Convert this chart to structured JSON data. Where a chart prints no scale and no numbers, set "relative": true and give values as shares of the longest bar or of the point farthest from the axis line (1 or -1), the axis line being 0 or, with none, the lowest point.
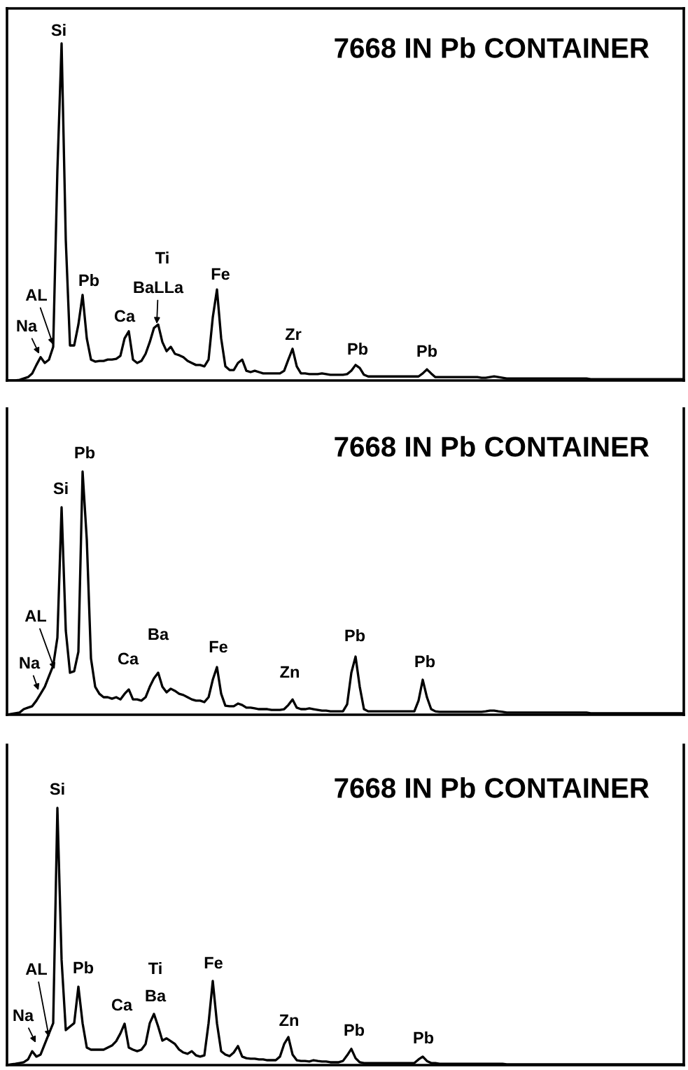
{
  "chart_data": [
    {
      "type": "line",
      "title": "7668 IN Pb CONTAINER",
      "relative": true,
      "categories": [
        null,
        null,
        null,
        null,
        null,
        null,
        null,
        null,
        null,
        null,
        null,
        null,
        null,
        null,
        null,
        null,
        null,
        null,
        null,
        null,
        null,
        null,
        null,
        null,
        null,
        null,
        null,
        null,
        null,
        null,
        null,
        null,
        null,
        null,
        null,
        null,
        null,
        null,
        null,
        null,
        null,
        null,
        null,
        null,
        null,
        null,
        null,
        null,
        null,
        null,
        null,
        null,
        null,
        null,
        null,
        null,
        null,
        null,
        null,
        null,
        null,
        null,
        null,
        null,
        null,
        null,
        null,
        null,
        null,
        null,
        null,
        null,
        null,
        null,
        null,
        null,
        null,
        null,
        null,
        null,
        null,
        null,
        null,
        null,
        null,
        null,
        null,
        null,
        null,
        null,
        null,
        null,
        null,
        null,
        null,
        null,
        null,
        null,
        null,
        null,
        null,
        null,
        null,
        null,
        null,
        null,
        null,
        null,
        null,
        null,
        null,
        null,
        null,
        null,
        null,
        null,
        null,
        null,
        null,
        null,
        null,
        null,
        null,
        null,
        null,
        null,
        null,
        null,
        null,
        null,
        null,
        null,
        null,
        null,
        null,
        null,
        null,
        null,
        null,
        null,
        null,
        null,
        null,
        null,
        null,
        null,
        null,
        null,
        null,
        null,
        null,
        null,
        null,
        null,
        null,
        null,
        null,
        null,
        null,
        null,
        null,
        null
      ],
      "series": [
        {
          "color": "#000000",
          "values": [
            0,
            0,
            0,
            0.002,
            0.006,
            0.01,
            0.021,
            0.046,
            0.069,
            0.052,
            0.062,
            0.1,
            0.624,
            1,
            0.416,
            0.104,
            0.104,
            0.166,
            0.254,
            0.125,
            0.062,
            0.056,
            0.058,
            0.058,
            0.062,
            0.062,
            0.064,
            0.073,
            0.125,
            0.146,
            0.062,
            0.052,
            0.058,
            0.079,
            0.114,
            0.156,
            0.166,
            0.114,
            0.087,
            0.1,
            0.079,
            0.075,
            0.069,
            0.058,
            0.052,
            0.046,
            0.046,
            0.042,
            0.062,
            0.187,
            0.27,
            0.125,
            0.042,
            0.031,
            0.031,
            0.052,
            0.062,
            0.029,
            0.025,
            0.029,
            0.025,
            0.021,
            0.021,
            0.021,
            0.021,
            0.021,
            0.029,
            0.062,
            0.094,
            0.042,
            0.021,
            0.021,
            0.019,
            0.019,
            0.019,
            0.021,
            0.019,
            0.017,
            0.017,
            0.017,
            0.017,
            0.019,
            0.029,
            0.046,
            0.037,
            0.017,
            0.012,
            0.012,
            0.012,
            0.012,
            0.012,
            0.012,
            0.012,
            0.012,
            0.012,
            0.012,
            0.012,
            0.012,
            0.012,
            0.021,
            0.033,
            0.021,
            0.01,
            0.01,
            0.01,
            0.01,
            0.01,
            0.01,
            0.01,
            0.01,
            0.01,
            0.01,
            0.01,
            0.008,
            0.008,
            0.01,
            0.012,
            0.01,
            0.008,
            0.006,
            0.006,
            0.006,
            0.006,
            0.006,
            0.006,
            0.006,
            0.006,
            0.006,
            0.006,
            0.006,
            0.006,
            0.006,
            0.006,
            0.006,
            0.006,
            0.006,
            0.006,
            0.006,
            0.006,
            0.004,
            0.004,
            0.004,
            0.004,
            0.004,
            0.004,
            0.004,
            0.004,
            0.004,
            0.004,
            0.004,
            0.004,
            0.004,
            0.004,
            0.004,
            0.004,
            0.004,
            0.004,
            0.004,
            0.004,
            0.004,
            0.004,
            0.004
          ]
        }
      ],
      "annotations": [
        "Si",
        "AL",
        "Na",
        "Pb",
        "Ca",
        "Ti",
        "BaLLa",
        "Fe",
        "Zr",
        "Pb",
        "Pb"
      ]
    },
    {
      "type": "line",
      "title": "7668 IN Pb CONTAINER",
      "relative": true,
      "categories": [
        null,
        null,
        null,
        null,
        null,
        null,
        null,
        null,
        null,
        null,
        null,
        null,
        null,
        null,
        null,
        null,
        null,
        null,
        null,
        null,
        null,
        null,
        null,
        null,
        null,
        null,
        null,
        null,
        null,
        null,
        null,
        null,
        null,
        null,
        null,
        null,
        null,
        null,
        null,
        null,
        null,
        null,
        null,
        null,
        null,
        null,
        null,
        null,
        null,
        null,
        null,
        null,
        null,
        null,
        null,
        null,
        null,
        null,
        null,
        null,
        null,
        null,
        null,
        null,
        null,
        null,
        null,
        null,
        null,
        null,
        null,
        null,
        null,
        null,
        null,
        null,
        null,
        null,
        null,
        null,
        null,
        null,
        null,
        null,
        null,
        null,
        null,
        null,
        null,
        null,
        null,
        null,
        null,
        null,
        null,
        null,
        null,
        null,
        null,
        null,
        null,
        null,
        null,
        null,
        null,
        null,
        null,
        null,
        null,
        null,
        null,
        null,
        null,
        null,
        null,
        null,
        null,
        null,
        null,
        null,
        null,
        null,
        null,
        null,
        null,
        null,
        null,
        null,
        null,
        null,
        null,
        null,
        null,
        null,
        null,
        null,
        null,
        null,
        null,
        null,
        null,
        null,
        null,
        null,
        null,
        null,
        null,
        null,
        null,
        null,
        null,
        null,
        null,
        null,
        null,
        null,
        null,
        null,
        null,
        null,
        null,
        null
      ],
      "series": [
        {
          "color": "#000000",
          "values": [
            0,
            0.003,
            0.006,
            0.009,
            0.023,
            0.029,
            0.035,
            0.058,
            0.086,
            0.115,
            0.159,
            0.202,
            0.317,
            0.853,
            0.346,
            0.173,
            0.179,
            0.259,
            1,
            0.72,
            0.231,
            0.115,
            0.086,
            0.072,
            0.072,
            0.066,
            0.072,
            0.063,
            0.086,
            0.104,
            0.063,
            0.063,
            0.058,
            0.072,
            0.115,
            0.15,
            0.173,
            0.115,
            0.092,
            0.107,
            0.098,
            0.086,
            0.081,
            0.072,
            0.063,
            0.058,
            0.058,
            0.052,
            0.072,
            0.144,
            0.196,
            0.086,
            0.037,
            0.035,
            0.035,
            0.046,
            0.04,
            0.029,
            0.029,
            0.026,
            0.023,
            0.023,
            0.023,
            0.02,
            0.02,
            0.02,
            0.023,
            0.04,
            0.063,
            0.029,
            0.023,
            0.023,
            0.026,
            0.023,
            0.02,
            0.017,
            0.017,
            0.014,
            0.014,
            0.014,
            0.014,
            0.043,
            0.173,
            0.239,
            0.115,
            0.023,
            0.014,
            0.014,
            0.014,
            0.014,
            0.014,
            0.014,
            0.014,
            0.014,
            0.014,
            0.014,
            0.014,
            0.014,
            0.058,
            0.144,
            0.072,
            0.023,
            0.014,
            0.012,
            0.012,
            0.012,
            0.012,
            0.012,
            0.012,
            0.012,
            0.012,
            0.012,
            0.012,
            0.012,
            0.014,
            0.017,
            0.017,
            0.014,
            0.012,
            0.009,
            0.009,
            0.009,
            0.009,
            0.009,
            0.009,
            0.009,
            0.009,
            0.009,
            0.009,
            0.009,
            0.009,
            0.009,
            0.009,
            0.009,
            0.009,
            0.009,
            0.009,
            0.009,
            0.009,
            0.006,
            0.006,
            0.006,
            0.006,
            0.006,
            0.006,
            0.006,
            0.006,
            0.006,
            0.006,
            0.006,
            0.006,
            0.006,
            0.006,
            0.006,
            0.006,
            0.006,
            0.006,
            0.006,
            0.006,
            0.006,
            0.006,
            0.006
          ]
        }
      ],
      "annotations": [
        "Pb",
        "Si",
        "AL",
        "Na",
        "Ca",
        "Ba",
        "Fe",
        "Zn",
        "Pb",
        "Pb"
      ]
    },
    {
      "type": "line",
      "title": "7668 IN Pb CONTAINER",
      "relative": true,
      "categories": [
        null,
        null,
        null,
        null,
        null,
        null,
        null,
        null,
        null,
        null,
        null,
        null,
        null,
        null,
        null,
        null,
        null,
        null,
        null,
        null,
        null,
        null,
        null,
        null,
        null,
        null,
        null,
        null,
        null,
        null,
        null,
        null,
        null,
        null,
        null,
        null,
        null,
        null,
        null,
        null,
        null,
        null,
        null,
        null,
        null,
        null,
        null,
        null,
        null,
        null,
        null,
        null,
        null,
        null,
        null,
        null,
        null,
        null,
        null,
        null,
        null,
        null,
        null,
        null,
        null,
        null,
        null,
        null,
        null,
        null,
        null,
        null,
        null,
        null,
        null,
        null,
        null,
        null,
        null,
        null,
        null,
        null,
        null,
        null,
        null,
        null,
        null,
        null,
        null,
        null,
        null,
        null,
        null,
        null,
        null,
        null,
        null,
        null,
        null,
        null,
        null,
        null,
        null,
        null,
        null,
        null,
        null,
        null,
        null,
        null,
        null,
        null,
        null,
        null,
        null,
        null,
        null,
        null,
        null,
        null,
        null,
        null,
        null,
        null,
        null,
        null,
        null,
        null,
        null,
        null,
        null,
        null,
        null,
        null,
        null,
        null,
        null,
        null,
        null,
        null,
        null,
        null,
        null,
        null,
        null,
        null,
        null,
        null,
        null,
        null,
        null,
        null,
        null,
        null,
        null,
        null,
        null,
        null,
        null,
        null,
        null,
        null
      ],
      "series": [
        {
          "color": "#000000",
          "values": [
            0,
            0.003,
            0.005,
            0.008,
            0.011,
            0.022,
            0.054,
            0.033,
            0.041,
            0.082,
            0.123,
            0.163,
            1,
            0.409,
            0.136,
            0.15,
            0.163,
            0.305,
            0.163,
            0.068,
            0.06,
            0.06,
            0.06,
            0.06,
            0.068,
            0.076,
            0.093,
            0.123,
            0.161,
            0.068,
            0.06,
            0.054,
            0.06,
            0.082,
            0.163,
            0.199,
            0.15,
            0.095,
            0.104,
            0.093,
            0.082,
            0.06,
            0.049,
            0.044,
            0.054,
            0.038,
            0.033,
            0.038,
            0.163,
            0.327,
            0.163,
            0.054,
            0.041,
            0.035,
            0.049,
            0.074,
            0.033,
            0.027,
            0.025,
            0.025,
            0.022,
            0.022,
            0.019,
            0.019,
            0.019,
            0.033,
            0.082,
            0.109,
            0.041,
            0.019,
            0.016,
            0.016,
            0.014,
            0.019,
            0.016,
            0.014,
            0.014,
            0.011,
            0.011,
            0.011,
            0.016,
            0.038,
            0.063,
            0.027,
            0.011,
            0.008,
            0.008,
            0.008,
            0.008,
            0.008,
            0.008,
            0.008,
            0.008,
            0.008,
            0.008,
            0.008,
            0.008,
            0.008,
            0.022,
            0.033,
            0.016,
            0.008,
            0.008,
            0.005,
            0.005,
            0.005,
            0.005,
            0.005,
            0.005,
            0.005,
            0.005,
            0.005,
            0.005,
            0.005,
            0.005,
            0.005,
            0.005,
            0.005,
            0.005,
            0.003,
            0.003,
            0.003,
            0.003,
            0.003,
            0.003,
            0.003,
            0.003,
            0.003,
            0.003,
            0.003,
            0.003,
            0.003,
            0.003,
            0.003,
            0.003,
            0.003,
            0.003,
            0.003,
            0.003,
            0.003,
            0.003,
            0.003,
            0.003,
            0.003,
            0.003,
            0.003,
            0.003,
            0.003,
            0.003,
            0.003,
            0.003,
            0.003,
            0.003,
            0.003,
            0.003,
            0.003,
            0.003,
            0.003,
            0.003,
            0.003,
            0.003,
            0.003
          ]
        }
      ],
      "annotations": [
        "Si",
        "AL",
        "Pb",
        "Na",
        "Ca",
        "Ti",
        "Ba",
        "Fe",
        "Zn",
        "Pb",
        "Pb"
      ]
    }
  ]
}
